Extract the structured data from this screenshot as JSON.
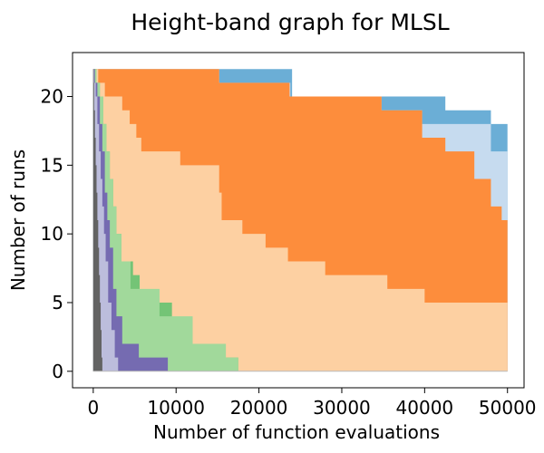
{
  "chart_data": {
    "type": "area",
    "title": "Height-band graph for MLSL",
    "xlabel": "Number of function evaluations",
    "ylabel": "Number of runs",
    "xlim": [
      -2500,
      52000
    ],
    "ylim": [
      -1.2,
      23.2
    ],
    "xticks": [
      0,
      10000,
      20000,
      30000,
      40000,
      50000
    ],
    "xtick_labels": [
      "0",
      "10000",
      "20000",
      "30000",
      "40000",
      "50000"
    ],
    "yticks": [
      0,
      5,
      10,
      15,
      20
    ],
    "ytick_labels": [
      "0",
      "5",
      "10",
      "15",
      "20"
    ],
    "grid": false,
    "total_runs": 22,
    "bands": [
      {
        "color": "#636363",
        "points": [
          [
            0,
            22
          ],
          [
            50,
            21
          ],
          [
            100,
            19
          ],
          [
            200,
            17
          ],
          [
            300,
            15
          ],
          [
            400,
            13
          ],
          [
            500,
            11
          ],
          [
            600,
            9
          ],
          [
            700,
            7
          ],
          [
            800,
            5
          ],
          [
            900,
            3
          ],
          [
            1000,
            1
          ],
          [
            1100,
            0
          ]
        ]
      },
      {
        "color": "#bcbddc",
        "points": [
          [
            0,
            22
          ],
          [
            100,
            21
          ],
          [
            300,
            20
          ],
          [
            500,
            18
          ],
          [
            700,
            16
          ],
          [
            900,
            14
          ],
          [
            1100,
            12
          ],
          [
            1300,
            10
          ],
          [
            1500,
            8
          ],
          [
            1800,
            5
          ],
          [
            2200,
            3
          ],
          [
            2600,
            1
          ],
          [
            3000,
            0
          ]
        ]
      },
      {
        "color": "#756bb1",
        "points": [
          [
            0,
            22
          ],
          [
            200,
            21
          ],
          [
            500,
            20
          ],
          [
            800,
            18
          ],
          [
            1100,
            16
          ],
          [
            1400,
            13
          ],
          [
            1700,
            11
          ],
          [
            2000,
            9
          ],
          [
            2400,
            6
          ],
          [
            2800,
            4
          ],
          [
            3500,
            2
          ],
          [
            5500,
            1
          ],
          [
            9000,
            0
          ]
        ]
      },
      {
        "color": "#a1d99b",
        "points": [
          [
            0,
            22
          ],
          [
            400,
            21
          ],
          [
            800,
            20
          ],
          [
            1200,
            18
          ],
          [
            1600,
            16
          ],
          [
            2000,
            14
          ],
          [
            2400,
            12
          ],
          [
            2800,
            10
          ],
          [
            3400,
            8
          ],
          [
            4500,
            6
          ],
          [
            8000,
            4
          ],
          [
            12000,
            2
          ],
          [
            16000,
            1
          ],
          [
            17500,
            0
          ]
        ]
      },
      {
        "color": "#74c476",
        "points": [
          [
            0,
            22
          ],
          [
            400,
            21
          ],
          [
            800,
            20
          ],
          [
            1200,
            18
          ],
          [
            1600,
            16
          ],
          [
            2000,
            14
          ],
          [
            2400,
            12
          ],
          [
            2800,
            10
          ],
          [
            3400,
            8
          ],
          [
            4800,
            7
          ],
          [
            5600,
            5
          ],
          [
            9500,
            3
          ],
          [
            12000,
            2
          ],
          [
            16000,
            1
          ],
          [
            17500,
            0
          ]
        ]
      },
      {
        "color": "#fdd0a2",
        "points": [
          [
            0,
            22
          ],
          [
            600,
            21
          ],
          [
            1400,
            20
          ],
          [
            3500,
            19
          ],
          [
            4400,
            18
          ],
          [
            5200,
            17
          ],
          [
            5800,
            16
          ],
          [
            10500,
            15
          ],
          [
            15200,
            13
          ],
          [
            15500,
            11
          ],
          [
            18000,
            10
          ],
          [
            20800,
            9
          ],
          [
            23500,
            8
          ],
          [
            28000,
            7
          ],
          [
            35500,
            6
          ],
          [
            40000,
            5
          ],
          [
            50000,
            0
          ]
        ]
      },
      {
        "color": "#fd8d3c",
        "points": [
          [
            0,
            22
          ],
          [
            15200,
            21
          ],
          [
            23700,
            20
          ],
          [
            34800,
            19
          ],
          [
            39700,
            17
          ],
          [
            42500,
            16
          ],
          [
            46000,
            14
          ],
          [
            48000,
            12
          ],
          [
            49300,
            11
          ],
          [
            50000,
            5
          ]
        ]
      },
      {
        "color": "#c6dbef",
        "points": [
          [
            0,
            22
          ],
          [
            15200,
            21
          ],
          [
            23800,
            20
          ],
          [
            34800,
            19
          ],
          [
            39700,
            18
          ],
          [
            42500,
            18
          ],
          [
            46000,
            18
          ],
          [
            48000,
            16
          ],
          [
            50000,
            15
          ]
        ]
      },
      {
        "color": "#6baed6",
        "points": [
          [
            0,
            22
          ],
          [
            15200,
            22
          ],
          [
            23700,
            22
          ],
          [
            24000,
            20
          ],
          [
            34800,
            20
          ],
          [
            42500,
            19
          ],
          [
            46000,
            19
          ],
          [
            48000,
            18
          ],
          [
            50000,
            18
          ]
        ]
      }
    ]
  }
}
